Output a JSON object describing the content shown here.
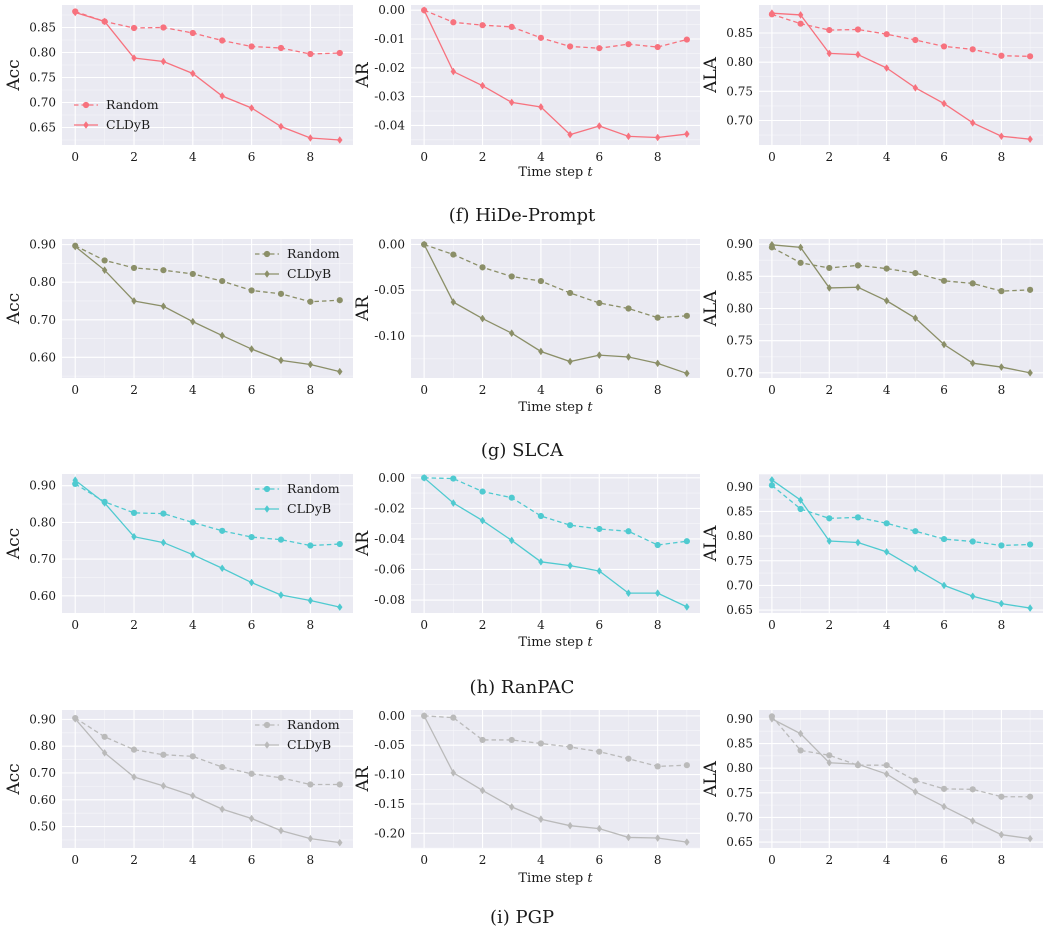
{
  "legend_labels": [
    "Random",
    "CLDyB"
  ],
  "groups": [
    {
      "caption": "(f) HiDe-Prompt",
      "color": "#f7727e",
      "legend_in": 0,
      "legend_pos": "bottom-left",
      "xlabel": "Time step t",
      "charts": [
        {
          "type": "line",
          "ylabel": "Acc",
          "ylim": [
            0.615,
            0.895
          ],
          "yticks": [
            0.65,
            0.7,
            0.75,
            0.8,
            0.85
          ],
          "ytick_labels": [
            "0.65",
            "0.70",
            "0.75",
            "0.80",
            "0.85"
          ],
          "x": [
            0,
            1,
            2,
            3,
            4,
            5,
            6,
            7,
            8,
            9
          ],
          "xticks": [
            0,
            2,
            4,
            6,
            8
          ],
          "series": [
            {
              "name": "Random",
              "values": [
                0.882,
                0.862,
                0.849,
                0.85,
                0.839,
                0.824,
                0.812,
                0.809,
                0.797,
                0.799
              ]
            },
            {
              "name": "CLDyB",
              "values": [
                0.88,
                0.862,
                0.789,
                0.782,
                0.758,
                0.713,
                0.689,
                0.652,
                0.629,
                0.625
              ]
            }
          ]
        },
        {
          "type": "line",
          "ylabel": "AR",
          "ylim": [
            -0.0468,
            0.0018
          ],
          "yticks": [
            -0.04,
            -0.03,
            -0.02,
            -0.01,
            0.0
          ],
          "ytick_labels": [
            "-0.04",
            "-0.03",
            "-0.02",
            "-0.01",
            "0.00"
          ],
          "x": [
            0,
            1,
            2,
            3,
            4,
            5,
            6,
            7,
            8,
            9
          ],
          "xticks": [
            0,
            2,
            4,
            6,
            8
          ],
          "series": [
            {
              "name": "Random",
              "values": [
                0.0,
                -0.0042,
                -0.0052,
                -0.0058,
                -0.0096,
                -0.0126,
                -0.0132,
                -0.0118,
                -0.0128,
                -0.0102
              ]
            },
            {
              "name": "CLDyB",
              "values": [
                0.0,
                -0.0213,
                -0.0262,
                -0.032,
                -0.0336,
                -0.0432,
                -0.0402,
                -0.0438,
                -0.0442,
                -0.043
              ]
            }
          ]
        },
        {
          "type": "line",
          "ylabel": "ALA",
          "ylim": [
            0.658,
            0.898
          ],
          "yticks": [
            0.7,
            0.75,
            0.8,
            0.85
          ],
          "ytick_labels": [
            "0.70",
            "0.75",
            "0.80",
            "0.85"
          ],
          "x": [
            0,
            1,
            2,
            3,
            4,
            5,
            6,
            7,
            8,
            9
          ],
          "xticks": [
            0,
            2,
            4,
            6,
            8
          ],
          "series": [
            {
              "name": "Random",
              "values": [
                0.882,
                0.866,
                0.855,
                0.856,
                0.848,
                0.838,
                0.827,
                0.822,
                0.811,
                0.81
              ]
            },
            {
              "name": "CLDyB",
              "values": [
                0.884,
                0.881,
                0.815,
                0.813,
                0.79,
                0.756,
                0.729,
                0.696,
                0.673,
                0.668
              ]
            }
          ]
        }
      ]
    },
    {
      "caption": "(g) SLCA",
      "color": "#8b8f68",
      "legend_in": 0,
      "legend_pos": "top-right",
      "xlabel": "Time step t",
      "charts": [
        {
          "type": "line",
          "ylabel": "Acc",
          "ylim": [
            0.545,
            0.915
          ],
          "yticks": [
            0.6,
            0.7,
            0.8,
            0.9
          ],
          "ytick_labels": [
            "0.60",
            "0.70",
            "0.80",
            "0.90"
          ],
          "x": [
            0,
            1,
            2,
            3,
            4,
            5,
            6,
            7,
            8,
            9
          ],
          "xticks": [
            0,
            2,
            4,
            6,
            8
          ],
          "series": [
            {
              "name": "Random",
              "values": [
                0.897,
                0.858,
                0.838,
                0.832,
                0.822,
                0.803,
                0.778,
                0.769,
                0.748,
                0.752
              ]
            },
            {
              "name": "CLDyB",
              "values": [
                0.895,
                0.832,
                0.75,
                0.736,
                0.695,
                0.658,
                0.622,
                0.592,
                0.581,
                0.562
              ]
            }
          ]
        },
        {
          "type": "line",
          "ylabel": "AR",
          "ylim": [
            -0.146,
            0.006
          ],
          "yticks": [
            -0.1,
            -0.05,
            0.0
          ],
          "ytick_labels": [
            "-0.10",
            "-0.05",
            "0.00"
          ],
          "x": [
            0,
            1,
            2,
            3,
            4,
            5,
            6,
            7,
            8,
            9
          ],
          "xticks": [
            0,
            2,
            4,
            6,
            8
          ],
          "series": [
            {
              "name": "Random",
              "values": [
                0.0,
                -0.011,
                -0.025,
                -0.035,
                -0.04,
                -0.053,
                -0.064,
                -0.07,
                -0.08,
                -0.078
              ]
            },
            {
              "name": "CLDyB",
              "values": [
                0.0,
                -0.063,
                -0.081,
                -0.097,
                -0.117,
                -0.128,
                -0.121,
                -0.123,
                -0.13,
                -0.141
              ]
            }
          ]
        },
        {
          "type": "line",
          "ylabel": "ALA",
          "ylim": [
            0.692,
            0.908
          ],
          "yticks": [
            0.7,
            0.75,
            0.8,
            0.85,
            0.9
          ],
          "ytick_labels": [
            "0.70",
            "0.75",
            "0.80",
            "0.85",
            "0.90"
          ],
          "x": [
            0,
            1,
            2,
            3,
            4,
            5,
            6,
            7,
            8,
            9
          ],
          "xticks": [
            0,
            2,
            4,
            6,
            8
          ],
          "series": [
            {
              "name": "Random",
              "values": [
                0.895,
                0.871,
                0.863,
                0.867,
                0.862,
                0.855,
                0.843,
                0.839,
                0.827,
                0.829
              ]
            },
            {
              "name": "CLDyB",
              "values": [
                0.899,
                0.895,
                0.832,
                0.833,
                0.812,
                0.785,
                0.744,
                0.715,
                0.709,
                0.7
              ]
            }
          ]
        }
      ]
    },
    {
      "caption": "(h) RanPAC",
      "color": "#4fcad0",
      "legend_in": 0,
      "legend_pos": "top-right",
      "xlabel": "Time step t",
      "charts": [
        {
          "type": "line",
          "ylabel": "Acc",
          "ylim": [
            0.553,
            0.932
          ],
          "yticks": [
            0.6,
            0.7,
            0.8,
            0.9
          ],
          "ytick_labels": [
            "0.60",
            "0.70",
            "0.80",
            "0.90"
          ],
          "x": [
            0,
            1,
            2,
            3,
            4,
            5,
            6,
            7,
            8,
            9
          ],
          "xticks": [
            0,
            2,
            4,
            6,
            8
          ],
          "series": [
            {
              "name": "Random",
              "values": [
                0.905,
                0.856,
                0.826,
                0.824,
                0.8,
                0.777,
                0.76,
                0.753,
                0.737,
                0.741
              ]
            },
            {
              "name": "CLDyB",
              "values": [
                0.915,
                0.853,
                0.761,
                0.745,
                0.712,
                0.675,
                0.636,
                0.602,
                0.587,
                0.569
              ]
            }
          ]
        },
        {
          "type": "line",
          "ylabel": "AR",
          "ylim": [
            -0.0885,
            0.0025
          ],
          "yticks": [
            -0.08,
            -0.06,
            -0.04,
            -0.02,
            0.0
          ],
          "ytick_labels": [
            "-0.08",
            "-0.06",
            "-0.04",
            "-0.02",
            "0.00"
          ],
          "x": [
            0,
            1,
            2,
            3,
            4,
            5,
            6,
            7,
            8,
            9
          ],
          "xticks": [
            0,
            2,
            4,
            6,
            8
          ],
          "series": [
            {
              "name": "Random",
              "values": [
                0.0,
                -0.0005,
                -0.009,
                -0.013,
                -0.025,
                -0.031,
                -0.0335,
                -0.035,
                -0.044,
                -0.0415
              ]
            },
            {
              "name": "CLDyB",
              "values": [
                0.0,
                -0.0165,
                -0.028,
                -0.041,
                -0.055,
                -0.0575,
                -0.061,
                -0.0755,
                -0.0755,
                -0.0845
              ]
            }
          ]
        },
        {
          "type": "line",
          "ylabel": "ALA",
          "ylim": [
            0.644,
            0.926
          ],
          "yticks": [
            0.65,
            0.7,
            0.75,
            0.8,
            0.85,
            0.9
          ],
          "ytick_labels": [
            "0.65",
            "0.70",
            "0.75",
            "0.80",
            "0.85",
            "0.90"
          ],
          "x": [
            0,
            1,
            2,
            3,
            4,
            5,
            6,
            7,
            8,
            9
          ],
          "xticks": [
            0,
            2,
            4,
            6,
            8
          ],
          "series": [
            {
              "name": "Random",
              "values": [
                0.903,
                0.855,
                0.836,
                0.838,
                0.826,
                0.81,
                0.794,
                0.789,
                0.781,
                0.783
              ]
            },
            {
              "name": "CLDyB",
              "values": [
                0.914,
                0.873,
                0.79,
                0.787,
                0.768,
                0.734,
                0.7,
                0.678,
                0.663,
                0.654
              ]
            }
          ]
        }
      ]
    },
    {
      "caption": "(i) PGP",
      "color": "#bababa",
      "legend_in": 0,
      "legend_pos": "top-right",
      "xlabel": "Time step t",
      "charts": [
        {
          "type": "line",
          "ylabel": "Acc",
          "ylim": [
            0.42,
            0.935
          ],
          "yticks": [
            0.5,
            0.6,
            0.7,
            0.8,
            0.9
          ],
          "ytick_labels": [
            "0.50",
            "0.60",
            "0.70",
            "0.80",
            "0.90"
          ],
          "x": [
            0,
            1,
            2,
            3,
            4,
            5,
            6,
            7,
            8,
            9
          ],
          "xticks": [
            0,
            2,
            4,
            6,
            8
          ],
          "series": [
            {
              "name": "Random",
              "values": [
                0.905,
                0.835,
                0.787,
                0.768,
                0.762,
                0.722,
                0.697,
                0.682,
                0.657,
                0.657
              ]
            },
            {
              "name": "CLDyB",
              "values": [
                0.902,
                0.775,
                0.685,
                0.652,
                0.615,
                0.565,
                0.53,
                0.485,
                0.455,
                0.44
              ]
            }
          ]
        },
        {
          "type": "line",
          "ylabel": "AR",
          "ylim": [
            -0.225,
            0.01
          ],
          "yticks": [
            -0.2,
            -0.15,
            -0.1,
            -0.05,
            0.0
          ],
          "ytick_labels": [
            "-0.20",
            "-0.15",
            "-0.10",
            "-0.05",
            "0.00"
          ],
          "x": [
            0,
            1,
            2,
            3,
            4,
            5,
            6,
            7,
            8,
            9
          ],
          "xticks": [
            0,
            2,
            4,
            6,
            8
          ],
          "series": [
            {
              "name": "Random",
              "values": [
                0.0,
                -0.003,
                -0.041,
                -0.041,
                -0.047,
                -0.053,
                -0.061,
                -0.073,
                -0.086,
                -0.084
              ]
            },
            {
              "name": "CLDyB",
              "values": [
                0.0,
                -0.097,
                -0.127,
                -0.155,
                -0.176,
                -0.187,
                -0.192,
                -0.207,
                -0.208,
                -0.215
              ]
            }
          ]
        },
        {
          "type": "line",
          "ylabel": "ALA",
          "ylim": [
            0.638,
            0.918
          ],
          "yticks": [
            0.65,
            0.7,
            0.75,
            0.8,
            0.85,
            0.9
          ],
          "ytick_labels": [
            "0.65",
            "0.70",
            "0.75",
            "0.80",
            "0.85",
            "0.90"
          ],
          "x": [
            0,
            1,
            2,
            3,
            4,
            5,
            6,
            7,
            8,
            9
          ],
          "xticks": [
            0,
            2,
            4,
            6,
            8
          ],
          "series": [
            {
              "name": "Random",
              "values": [
                0.905,
                0.836,
                0.826,
                0.806,
                0.806,
                0.775,
                0.758,
                0.757,
                0.742,
                0.742
              ]
            },
            {
              "name": "CLDyB",
              "values": [
                0.9,
                0.87,
                0.811,
                0.808,
                0.788,
                0.752,
                0.722,
                0.693,
                0.665,
                0.657
              ]
            }
          ]
        }
      ]
    }
  ]
}
